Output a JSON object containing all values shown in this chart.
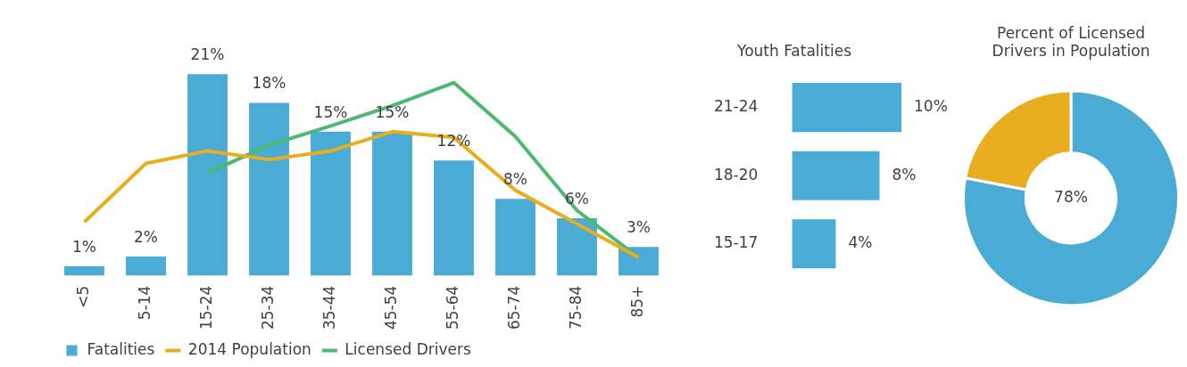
{
  "chart_data": [
    {
      "type": "bar",
      "categories": [
        "<5",
        "5-14",
        "15-24",
        "25-34",
        "35-44",
        "45-54",
        "55-64",
        "65-74",
        "75-84",
        "85+"
      ],
      "legend": "bottom",
      "series": [
        {
          "name": "Fatalities",
          "type": "bar",
          "color": "#4aabd4",
          "values": [
            1,
            2,
            21,
            18,
            15,
            15,
            12,
            8,
            6,
            3
          ],
          "value_labels": [
            "1%",
            "2%",
            "21%",
            "18%",
            "15%",
            "15%",
            "12%",
            "8%",
            "6%",
            "3%"
          ]
        },
        {
          "name": "2014 Population",
          "type": "line",
          "color": "#e9ad20",
          "values": [
            5.6,
            11.7,
            13,
            12.1,
            13,
            15,
            14.4,
            8.9,
            5.4,
            1.9
          ]
        },
        {
          "name": "Licensed Drivers",
          "type": "line",
          "color": "#4cb870",
          "values": [
            null,
            null,
            10.7,
            13.6,
            15.6,
            17.7,
            20.1,
            14.5,
            6.8,
            1.9
          ]
        }
      ]
    },
    {
      "type": "bar",
      "orientation": "horizontal",
      "title": "Youth Fatalities",
      "categories": [
        "21-24",
        "18-20",
        "15-17"
      ],
      "values": [
        10,
        8,
        4
      ],
      "color": "#4aabd4",
      "value_labels": [
        "10%",
        "8%",
        "4%"
      ]
    },
    {
      "type": "donut",
      "title": "Percent of Licensed Drivers in Population",
      "categories": [
        null,
        null
      ],
      "values": [
        78,
        22
      ],
      "colors": [
        "#4aabd4",
        "#e9ad20"
      ],
      "value_labels": [
        "78%",
        null
      ]
    }
  ]
}
